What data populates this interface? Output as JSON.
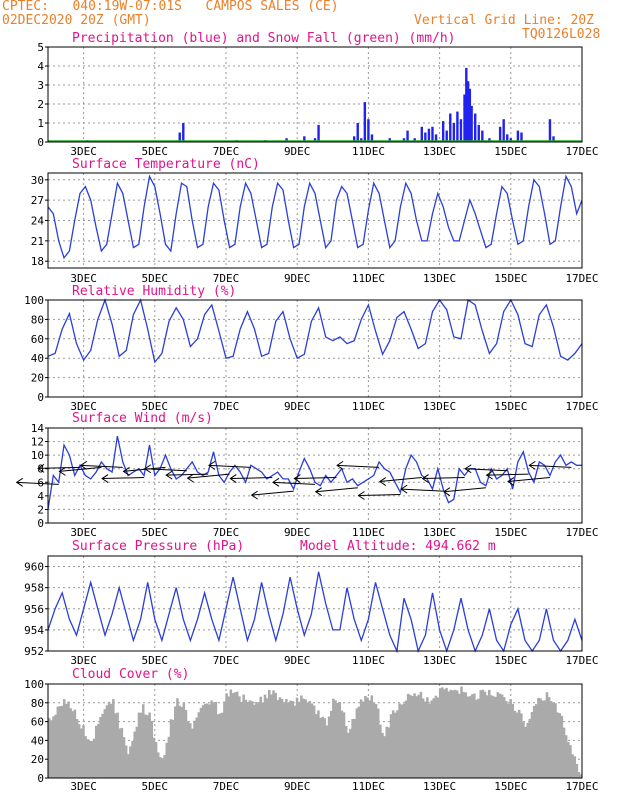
{
  "header": {
    "station_line": "CPTEC:   040:19W-07:01S   CAMPOS SALES (CE)",
    "date_line": "02DEC2020 20Z (GMT)",
    "grid_line": "Vertical Grid Line: 20Z",
    "code": "TQ0126L028"
  },
  "colors": {
    "header": "#e8812a",
    "title": "#e0148c",
    "line": "#2b3fd8",
    "bar_precip": "#2222ee",
    "bar_snow": "#22aa22",
    "cloud": "#aaaaaa",
    "grid": "#999999"
  },
  "x_ticks": [
    "3DEC",
    "5DEC",
    "7DEC",
    "9DEC",
    "11DEC",
    "13DEC",
    "15DEC",
    "17DEC"
  ],
  "chart_data": [
    {
      "id": "precip",
      "type": "bar",
      "title": "Precipitation (blue) and Snow Fall (green) (mm/h)",
      "ylim": [
        0,
        5
      ],
      "yticks": [
        0,
        1,
        2,
        3,
        4,
        5
      ],
      "xlim": [
        2,
        17
      ],
      "series": [
        {
          "name": "Precipitation",
          "color": "blue",
          "points": [
            [
              3.1,
              0.1
            ],
            [
              5.7,
              0.5
            ],
            [
              5.8,
              1.0
            ],
            [
              7.3,
              0.1
            ],
            [
              8.1,
              0.1
            ],
            [
              8.7,
              0.2
            ],
            [
              9.2,
              0.3
            ],
            [
              9.5,
              0.2
            ],
            [
              9.6,
              0.9
            ],
            [
              10.6,
              0.3
            ],
            [
              10.7,
              1.0
            ],
            [
              10.8,
              0.2
            ],
            [
              10.9,
              2.1
            ],
            [
              11.0,
              1.2
            ],
            [
              11.1,
              0.4
            ],
            [
              11.6,
              0.2
            ],
            [
              12.0,
              0.2
            ],
            [
              12.1,
              0.6
            ],
            [
              12.3,
              0.2
            ],
            [
              12.5,
              0.8
            ],
            [
              12.6,
              0.5
            ],
            [
              12.7,
              0.7
            ],
            [
              12.8,
              0.8
            ],
            [
              12.9,
              0.4
            ],
            [
              13.1,
              1.1
            ],
            [
              13.2,
              0.6
            ],
            [
              13.3,
              1.5
            ],
            [
              13.4,
              1.0
            ],
            [
              13.5,
              1.6
            ],
            [
              13.6,
              1.2
            ],
            [
              13.7,
              2.5
            ],
            [
              13.75,
              3.9
            ],
            [
              13.8,
              3.2
            ],
            [
              13.85,
              2.8
            ],
            [
              13.9,
              1.9
            ],
            [
              14.0,
              1.5
            ],
            [
              14.1,
              0.9
            ],
            [
              14.2,
              0.6
            ],
            [
              14.4,
              0.2
            ],
            [
              14.7,
              0.8
            ],
            [
              14.8,
              1.2
            ],
            [
              14.9,
              0.4
            ],
            [
              15.0,
              0.2
            ],
            [
              15.2,
              0.6
            ],
            [
              15.3,
              0.5
            ],
            [
              16.1,
              1.2
            ],
            [
              16.2,
              0.3
            ]
          ]
        },
        {
          "name": "Snow Fall",
          "color": "green",
          "points": []
        }
      ]
    },
    {
      "id": "temp",
      "type": "line",
      "title": "Surface Temperature (nC)",
      "ylim": [
        17,
        31
      ],
      "yticks": [
        18,
        21,
        24,
        27,
        30
      ],
      "xlim": [
        2,
        17
      ],
      "amplitude_pattern": "diurnal",
      "x": [
        2.0,
        2.15,
        2.3,
        2.45,
        2.6,
        2.75,
        2.9,
        3.05,
        3.2,
        3.35,
        3.5,
        3.65,
        3.8,
        3.95,
        4.1,
        4.25,
        4.4,
        4.55,
        4.7,
        4.85,
        5.0,
        5.15,
        5.3,
        5.45,
        5.6,
        5.75,
        5.9,
        6.05,
        6.2,
        6.35,
        6.5,
        6.65,
        6.8,
        6.95,
        7.1,
        7.25,
        7.4,
        7.55,
        7.7,
        7.85,
        8.0,
        8.15,
        8.3,
        8.45,
        8.6,
        8.75,
        8.9,
        9.05,
        9.2,
        9.35,
        9.5,
        9.65,
        9.8,
        9.95,
        10.1,
        10.25,
        10.4,
        10.55,
        10.7,
        10.85,
        11.0,
        11.15,
        11.3,
        11.45,
        11.6,
        11.75,
        11.9,
        12.05,
        12.2,
        12.35,
        12.5,
        12.65,
        12.8,
        12.95,
        13.1,
        13.25,
        13.4,
        13.55,
        13.7,
        13.85,
        14.0,
        14.15,
        14.3,
        14.45,
        14.6,
        14.75,
        14.9,
        15.05,
        15.2,
        15.35,
        15.5,
        15.65,
        15.8,
        15.95,
        16.1,
        16.25,
        16.4,
        16.55,
        16.7,
        16.85,
        17.0
      ],
      "values": [
        26,
        25,
        21,
        18.5,
        19.5,
        24,
        28,
        29,
        27,
        23,
        19.5,
        20.5,
        25,
        29.5,
        28,
        24,
        20,
        20.5,
        26,
        30.5,
        29,
        25,
        20.5,
        19.5,
        25,
        29.5,
        29,
        24,
        20,
        20.5,
        26,
        29.5,
        28.5,
        24,
        20,
        20.5,
        26,
        29.5,
        28,
        24,
        20,
        20.5,
        26,
        29.5,
        28.5,
        24,
        20,
        20.5,
        26,
        29.5,
        28,
        24,
        20,
        21,
        27,
        29,
        28,
        24,
        20,
        20.5,
        25.5,
        29.5,
        28,
        24,
        20,
        21,
        26,
        29.5,
        28,
        24,
        21,
        21,
        25,
        28,
        26,
        23,
        21,
        21,
        24,
        27,
        25,
        22.5,
        20,
        20.5,
        25,
        29,
        28,
        24,
        20.5,
        21,
        26,
        30,
        29,
        25,
        20.5,
        21,
        26,
        30.5,
        29,
        25,
        27
      ]
    },
    {
      "id": "rh",
      "type": "line",
      "title": "Relative Humidity (%)",
      "ylim": [
        0,
        100
      ],
      "yticks": [
        0,
        20,
        40,
        60,
        80,
        100
      ],
      "xlim": [
        2,
        17
      ],
      "x": [
        2.0,
        2.2,
        2.4,
        2.6,
        2.8,
        3.0,
        3.2,
        3.4,
        3.6,
        3.8,
        4.0,
        4.2,
        4.4,
        4.6,
        4.8,
        5.0,
        5.2,
        5.4,
        5.6,
        5.8,
        6.0,
        6.2,
        6.4,
        6.6,
        6.8,
        7.0,
        7.2,
        7.4,
        7.6,
        7.8,
        8.0,
        8.2,
        8.4,
        8.6,
        8.8,
        9.0,
        9.2,
        9.4,
        9.6,
        9.8,
        10.0,
        10.2,
        10.4,
        10.6,
        10.8,
        11.0,
        11.2,
        11.4,
        11.6,
        11.8,
        12.0,
        12.2,
        12.4,
        12.6,
        12.8,
        13.0,
        13.2,
        13.4,
        13.6,
        13.8,
        14.0,
        14.2,
        14.4,
        14.6,
        14.8,
        15.0,
        15.2,
        15.4,
        15.6,
        15.8,
        16.0,
        16.2,
        16.4,
        16.6,
        16.8,
        17.0
      ],
      "values": [
        42,
        45,
        70,
        86,
        55,
        38,
        48,
        80,
        100,
        75,
        42,
        48,
        85,
        100,
        70,
        36,
        45,
        78,
        92,
        80,
        52,
        60,
        85,
        95,
        68,
        40,
        42,
        70,
        88,
        70,
        42,
        45,
        78,
        88,
        60,
        40,
        44,
        78,
        92,
        62,
        58,
        62,
        55,
        58,
        80,
        95,
        68,
        44,
        58,
        82,
        88,
        70,
        50,
        55,
        88,
        100,
        90,
        62,
        60,
        100,
        95,
        68,
        45,
        55,
        88,
        100,
        85,
        55,
        52,
        85,
        95,
        72,
        42,
        38,
        45,
        55
      ]
    },
    {
      "id": "wind",
      "type": "line",
      "title": "Surface Wind (m/s)",
      "ylim": [
        0,
        14
      ],
      "yticks": [
        0,
        2,
        4,
        6,
        8,
        10,
        12,
        14
      ],
      "xlim": [
        2,
        17
      ],
      "x": [
        2.0,
        2.15,
        2.3,
        2.45,
        2.6,
        2.75,
        2.9,
        3.05,
        3.2,
        3.35,
        3.5,
        3.65,
        3.8,
        3.95,
        4.1,
        4.25,
        4.4,
        4.55,
        4.7,
        4.85,
        5.0,
        5.15,
        5.3,
        5.45,
        5.6,
        5.75,
        5.9,
        6.05,
        6.2,
        6.35,
        6.5,
        6.65,
        6.8,
        6.95,
        7.1,
        7.25,
        7.4,
        7.55,
        7.7,
        7.85,
        8.0,
        8.15,
        8.3,
        8.45,
        8.6,
        8.75,
        8.9,
        9.05,
        9.2,
        9.35,
        9.5,
        9.65,
        9.8,
        9.95,
        10.1,
        10.25,
        10.4,
        10.55,
        10.7,
        10.85,
        11.0,
        11.15,
        11.3,
        11.45,
        11.6,
        11.75,
        11.9,
        12.05,
        12.2,
        12.35,
        12.5,
        12.65,
        12.8,
        12.95,
        13.1,
        13.25,
        13.4,
        13.55,
        13.7,
        13.85,
        14.0,
        14.15,
        14.3,
        14.45,
        14.6,
        14.75,
        14.9,
        15.05,
        15.2,
        15.35,
        15.5,
        15.65,
        15.8,
        15.95,
        16.1,
        16.25,
        16.4,
        16.55,
        16.7,
        16.85,
        17.0
      ],
      "values": [
        2,
        7,
        6,
        11.5,
        10,
        7,
        8.5,
        7,
        6.5,
        7.5,
        9,
        8,
        7.5,
        12.8,
        9,
        7,
        7.5,
        8,
        7,
        11.5,
        7,
        8,
        10,
        8,
        6.5,
        7,
        8,
        9,
        7.5,
        7,
        7.5,
        10.5,
        7,
        6,
        7.5,
        8.5,
        7.5,
        6,
        8.5,
        8,
        7.5,
        6.5,
        7,
        7.5,
        6.5,
        6.5,
        5,
        7.5,
        9.5,
        8,
        6,
        5.5,
        7,
        6,
        7,
        8,
        6,
        6.5,
        5.5,
        6,
        6.5,
        7,
        9,
        8,
        7.5,
        6,
        4.5,
        8,
        10,
        9,
        7,
        6.5,
        5,
        8,
        5,
        3,
        3.5,
        8,
        7,
        8,
        8,
        6,
        5.5,
        8,
        6.5,
        7,
        8,
        5,
        9,
        10.5,
        7.5,
        6,
        9,
        8.5,
        7,
        9,
        10,
        8.5,
        9,
        8.5,
        8.5
      ],
      "wind_vector_count": 25
    },
    {
      "id": "pressure",
      "type": "line",
      "title": "Surface Pressure (hPa)",
      "annotation": "Model Altitude: 494.662 m",
      "ylim": [
        952,
        961
      ],
      "yticks": [
        952,
        954,
        956,
        958,
        960
      ],
      "xlim": [
        2,
        17
      ],
      "x": [
        2.0,
        2.2,
        2.4,
        2.6,
        2.8,
        3.0,
        3.2,
        3.4,
        3.6,
        3.8,
        4.0,
        4.2,
        4.4,
        4.6,
        4.8,
        5.0,
        5.2,
        5.4,
        5.6,
        5.8,
        6.0,
        6.2,
        6.4,
        6.6,
        6.8,
        7.0,
        7.2,
        7.4,
        7.6,
        7.8,
        8.0,
        8.2,
        8.4,
        8.6,
        8.8,
        9.0,
        9.2,
        9.4,
        9.6,
        9.8,
        10.0,
        10.2,
        10.4,
        10.6,
        10.8,
        11.0,
        11.2,
        11.4,
        11.6,
        11.8,
        12.0,
        12.2,
        12.4,
        12.6,
        12.8,
        13.0,
        13.2,
        13.4,
        13.6,
        13.8,
        14.0,
        14.2,
        14.4,
        14.6,
        14.8,
        15.0,
        15.2,
        15.4,
        15.6,
        15.8,
        16.0,
        16.2,
        16.4,
        16.6,
        16.8,
        17.0
      ],
      "values": [
        954,
        956,
        957.5,
        955,
        953.5,
        956,
        958.5,
        956,
        953.5,
        955.5,
        958,
        955.5,
        953,
        955,
        958.5,
        955,
        953,
        955.5,
        958,
        955,
        953,
        955,
        957.5,
        955,
        953,
        956,
        959,
        956,
        953,
        955,
        958.5,
        955.5,
        953,
        955.5,
        959,
        956,
        953.5,
        955.5,
        959.5,
        956.5,
        954,
        954,
        958,
        955,
        953,
        955,
        958.5,
        956,
        953.5,
        952,
        957,
        955,
        952,
        953.5,
        957.5,
        954,
        952,
        954,
        957,
        954,
        952,
        953.5,
        956,
        953,
        952,
        954.5,
        956,
        953,
        952,
        953,
        956,
        953,
        952,
        953,
        955,
        953
      ]
    },
    {
      "id": "cloud",
      "type": "area",
      "title": "Cloud Cover (%)",
      "ylim": [
        0,
        100
      ],
      "yticks": [
        0,
        20,
        40,
        60,
        80,
        100
      ],
      "xlim": [
        2,
        17
      ],
      "x": [
        2.0,
        2.2,
        2.4,
        2.6,
        2.8,
        3.0,
        3.2,
        3.4,
        3.6,
        3.8,
        4.0,
        4.2,
        4.4,
        4.6,
        4.8,
        5.0,
        5.2,
        5.4,
        5.6,
        5.8,
        6.0,
        6.2,
        6.4,
        6.6,
        6.8,
        7.0,
        7.2,
        7.4,
        7.6,
        7.8,
        8.0,
        8.2,
        8.4,
        8.6,
        8.8,
        9.0,
        9.2,
        9.4,
        9.6,
        9.8,
        10.0,
        10.2,
        10.4,
        10.6,
        10.8,
        11.0,
        11.2,
        11.4,
        11.6,
        11.8,
        12.0,
        12.2,
        12.4,
        12.6,
        12.8,
        13.0,
        13.2,
        13.4,
        13.6,
        13.8,
        14.0,
        14.2,
        14.4,
        14.6,
        14.8,
        15.0,
        15.2,
        15.4,
        15.6,
        15.8,
        16.0,
        16.2,
        16.4,
        16.6,
        16.8,
        17.0
      ],
      "values": [
        65,
        75,
        85,
        80,
        70,
        55,
        40,
        70,
        80,
        85,
        60,
        30,
        55,
        80,
        75,
        40,
        20,
        60,
        88,
        82,
        55,
        75,
        85,
        90,
        70,
        95,
        95,
        90,
        88,
        85,
        90,
        95,
        92,
        90,
        85,
        88,
        92,
        80,
        75,
        60,
        90,
        85,
        50,
        75,
        88,
        92,
        85,
        45,
        70,
        80,
        88,
        92,
        95,
        90,
        85,
        100,
        95,
        100,
        98,
        95,
        92,
        95,
        98,
        95,
        90,
        85,
        75,
        60,
        80,
        88,
        92,
        85,
        70,
        40,
        20,
        5
      ]
    }
  ]
}
